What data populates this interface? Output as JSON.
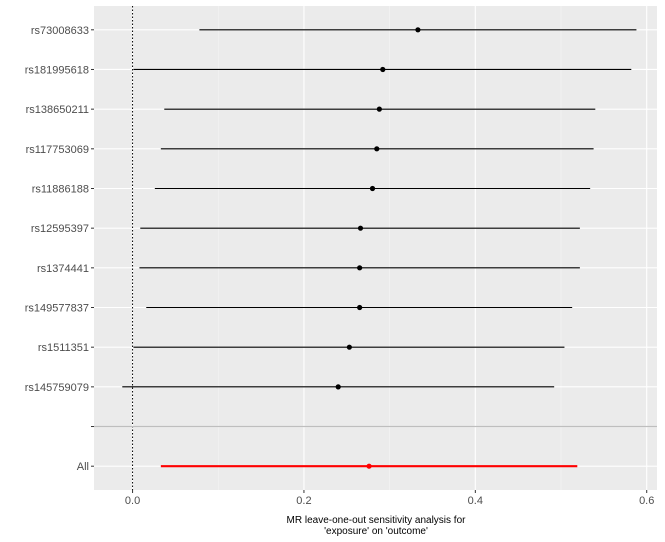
{
  "chart_data": {
    "type": "forest",
    "xlabel_lines": [
      "MR leave-one-out sensitivity analysis for",
      "'exposure' on 'outcome'"
    ],
    "xlim": [
      -0.045,
      0.612
    ],
    "xticks": [
      0.0,
      0.2,
      0.4,
      0.6
    ],
    "xtick_labels": [
      "0.0",
      "0.2",
      "0.4",
      "0.6"
    ],
    "reference_line_x": 0,
    "grid": true,
    "snps": [
      {
        "label": "rs73008633",
        "estimate": 0.333,
        "lower": 0.078,
        "upper": 0.588
      },
      {
        "label": "rs181995618",
        "estimate": 0.292,
        "lower": 0.001,
        "upper": 0.582
      },
      {
        "label": "rs138650211",
        "estimate": 0.288,
        "lower": 0.037,
        "upper": 0.54
      },
      {
        "label": "rs117753069",
        "estimate": 0.285,
        "lower": 0.033,
        "upper": 0.538
      },
      {
        "label": "rs11886188",
        "estimate": 0.28,
        "lower": 0.026,
        "upper": 0.534
      },
      {
        "label": "rs12595397",
        "estimate": 0.266,
        "lower": 0.009,
        "upper": 0.522
      },
      {
        "label": "rs1374441",
        "estimate": 0.265,
        "lower": 0.008,
        "upper": 0.522
      },
      {
        "label": "rs149577837",
        "estimate": 0.265,
        "lower": 0.016,
        "upper": 0.513
      },
      {
        "label": "rs1511351",
        "estimate": 0.253,
        "lower": 0.001,
        "upper": 0.504
      },
      {
        "label": "rs145759079",
        "estimate": 0.24,
        "lower": -0.012,
        "upper": 0.492
      }
    ],
    "separator_label": "",
    "overall": {
      "label": "All",
      "estimate": 0.276,
      "lower": 0.033,
      "upper": 0.519
    },
    "colors": {
      "panel": "#ebebeb",
      "grid_major": "#ffffff",
      "grid_minor": "#f5f5f5",
      "point": "#000000",
      "overall": "#ff0000",
      "separator": "#bebebe",
      "tick_text": "#4d4d4d"
    }
  }
}
